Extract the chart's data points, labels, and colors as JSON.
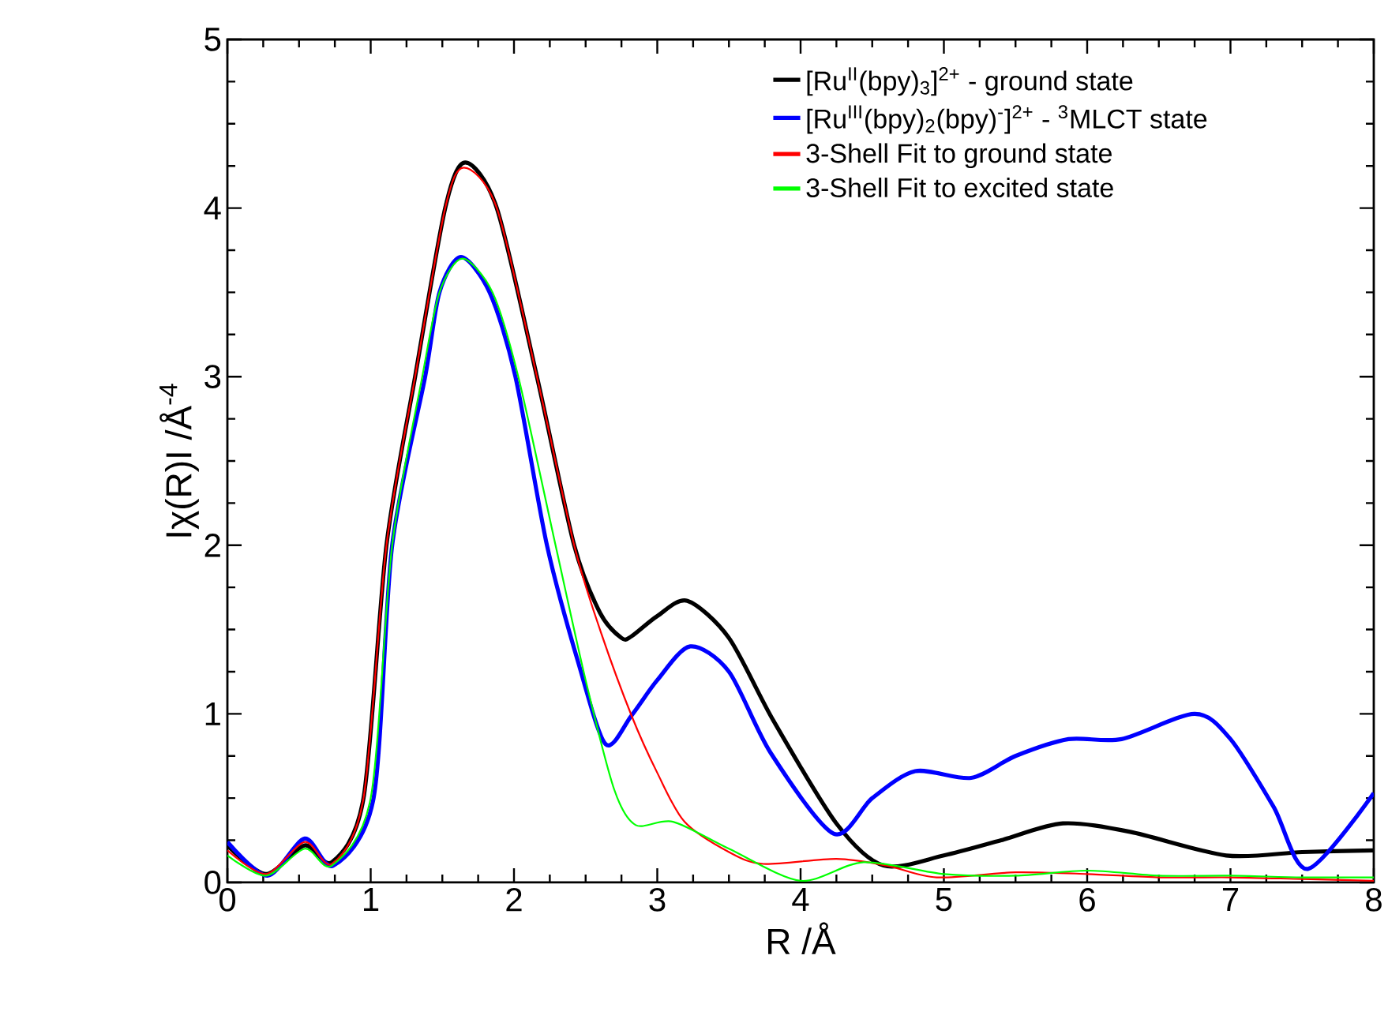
{
  "chart_data": {
    "type": "line",
    "xlabel": "R /Å",
    "ylabel": "Iχ(R)I /Å$^{-4}$",
    "xlim": [
      0,
      8
    ],
    "ylim": [
      0,
      5
    ],
    "xticks": [
      0,
      1,
      2,
      3,
      4,
      5,
      6,
      7,
      8
    ],
    "yticks": [
      0,
      1,
      2,
      3,
      4,
      5
    ],
    "grid": false,
    "legend": "top right",
    "marker": "none",
    "line_style": "solid",
    "series": [
      {
        "name": "[Ru$^{II}$(bpy)$_{3}$]$^{2+}$ - ground state",
        "color": "#000000",
        "x": [
          0,
          0.27,
          0.54,
          0.73,
          0.95,
          1.11,
          1.31,
          1.52,
          1.66,
          1.88,
          2.16,
          2.42,
          2.6,
          2.75,
          2.82,
          3.0,
          3.21,
          3.5,
          3.81,
          4.25,
          4.58,
          5.0,
          5.4,
          5.83,
          6.3,
          6.97,
          7.5,
          8.0
        ],
        "values": [
          0.22,
          0.05,
          0.22,
          0.12,
          0.5,
          2,
          3,
          4,
          4.27,
          4,
          3,
          2,
          1.6,
          1.45,
          1.46,
          1.58,
          1.67,
          1.45,
          0.96,
          0.35,
          0.1,
          0.16,
          0.25,
          0.35,
          0.3,
          0.16,
          0.18,
          0.19
        ]
      },
      {
        "name": "[Ru$^{III}$(bpy)$_{2}$(bpy)$^{-}$]$^{2+}$ - $^{3}$MLCT state",
        "color": "#0000ff",
        "x": [
          0,
          0.28,
          0.54,
          0.74,
          1.02,
          1.15,
          1.38,
          1.48,
          1.63,
          1.83,
          2.01,
          2.23,
          2.45,
          2.64,
          2.82,
          3.0,
          3.23,
          3.5,
          3.79,
          4.23,
          4.5,
          4.8,
          5.19,
          5.5,
          5.87,
          6.24,
          6.75,
          7.0,
          7.3,
          7.54,
          8.0
        ],
        "values": [
          0.24,
          0.04,
          0.26,
          0.1,
          0.5,
          2,
          3,
          3.5,
          3.71,
          3.5,
          3,
          2,
          1.3,
          0.82,
          0.99,
          1.2,
          1.4,
          1.25,
          0.77,
          0.29,
          0.5,
          0.66,
          0.62,
          0.75,
          0.85,
          0.85,
          1.0,
          0.85,
          0.45,
          0.08,
          0.53
        ]
      },
      {
        "name": "3-Shell Fit to ground state",
        "color": "#ff0000",
        "x": [
          0,
          0.27,
          0.54,
          0.73,
          0.95,
          1.11,
          1.31,
          1.52,
          1.65,
          1.88,
          2.16,
          2.42,
          2.6,
          2.82,
          3.0,
          3.19,
          3.5,
          3.74,
          4.25,
          4.6,
          4.95,
          5.5,
          6.0,
          6.5,
          7.0,
          7.5,
          8.0
        ],
        "values": [
          0.19,
          0.05,
          0.24,
          0.11,
          0.5,
          2,
          3,
          4,
          4.24,
          4,
          3,
          2,
          1.5,
          0.99,
          0.65,
          0.36,
          0.18,
          0.11,
          0.14,
          0.1,
          0.03,
          0.06,
          0.05,
          0.03,
          0.03,
          0.02,
          0.01
        ]
      },
      {
        "name": "3-Shell Fit to excited state",
        "color": "#00ff00",
        "x": [
          0,
          0.27,
          0.54,
          0.73,
          1.0,
          1.15,
          1.36,
          1.48,
          1.64,
          1.85,
          2.03,
          2.29,
          2.5,
          2.7,
          2.85,
          3.11,
          3.5,
          4.0,
          4.44,
          5.0,
          5.5,
          6.0,
          6.5,
          7.0,
          7.5,
          8.0
        ],
        "values": [
          0.16,
          0.04,
          0.2,
          0.1,
          0.5,
          2,
          3,
          3.5,
          3.7,
          3.5,
          3,
          2,
          1.2,
          0.55,
          0.34,
          0.36,
          0.2,
          0.01,
          0.12,
          0.05,
          0.04,
          0.07,
          0.04,
          0.04,
          0.03,
          0.03
        ]
      }
    ]
  }
}
